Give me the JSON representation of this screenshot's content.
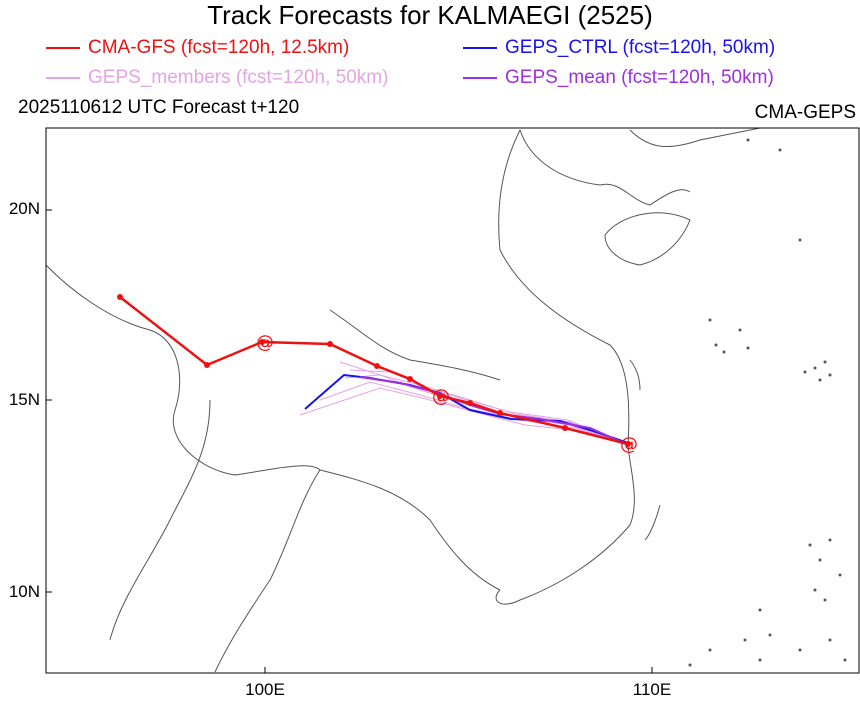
{
  "title": "Track Forecasts for KALMAEGI (2525)",
  "legend": [
    {
      "label": "CMA-GFS (fcst=120h, 12.5km)",
      "color": "#ee1111"
    },
    {
      "label": "GEPS_CTRL (fcst=120h, 50km)",
      "color": "#1a12ee"
    },
    {
      "label": "GEPS_members (fcst=120h, 50km)",
      "color": "#e3a4e3"
    },
    {
      "label": "GEPS_mean (fcst=120h, 50km)",
      "color": "#9e2fe0"
    }
  ],
  "subtitle_left": "2025110612 UTC Forecast t+120",
  "subtitle_right": "CMA-GEPS",
  "axes": {
    "lat_labels": [
      "20N",
      "15N",
      "10N"
    ],
    "lon_labels": [
      "100E",
      "110E"
    ]
  },
  "colors": {
    "cma_gfs": "#ee1111",
    "geps_ctrl": "#1a12ee",
    "geps_members": "#e3a4e3",
    "geps_mean": "#9e2fe0",
    "coast": "#555555"
  }
}
